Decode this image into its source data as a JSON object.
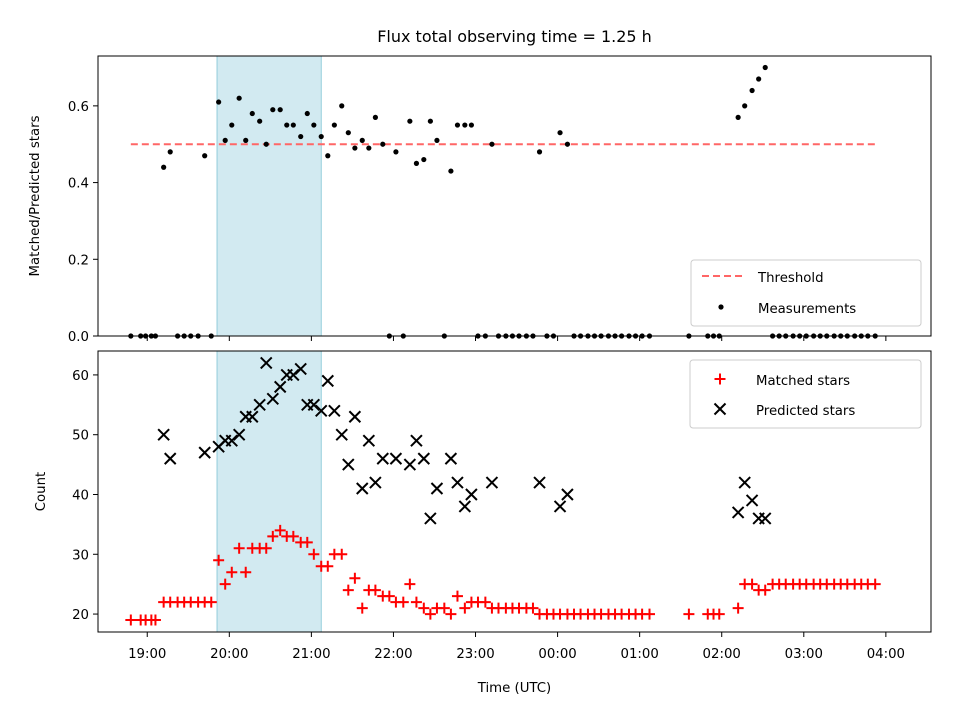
{
  "chart_data": [
    {
      "type": "scatter",
      "title": "Flux total observing time = 1.25 h",
      "xlabel": "",
      "ylabel": "Matched/Predicted stars",
      "ylim": [
        0,
        0.73
      ],
      "yticks": [
        0.0,
        0.2,
        0.4,
        0.6
      ],
      "ytick_labels": [
        "0.0",
        "0.2",
        "0.4",
        "0.6"
      ],
      "xlim_hours": [
        18.4,
        28.55
      ],
      "xticks_hours": [
        19,
        20,
        21,
        22,
        23,
        24,
        25,
        26,
        27,
        28
      ],
      "shaded_interval_hours": [
        19.85,
        21.12
      ],
      "shaded_color": "#add8e6",
      "threshold": {
        "name": "Threshold",
        "value": 0.5,
        "x_range_hours": [
          18.8,
          27.9
        ],
        "color": "#ff6666"
      },
      "legend": [
        "Threshold",
        "Measurements"
      ],
      "legend_position": "lower right",
      "series": [
        {
          "name": "Measurements",
          "color": "#000000",
          "points": [
            [
              18.8,
              0
            ],
            [
              18.92,
              0
            ],
            [
              18.98,
              0
            ],
            [
              19.05,
              0
            ],
            [
              19.1,
              0
            ],
            [
              19.2,
              0.44
            ],
            [
              19.28,
              0.48
            ],
            [
              19.37,
              0
            ],
            [
              19.45,
              0
            ],
            [
              19.53,
              0
            ],
            [
              19.62,
              0
            ],
            [
              19.7,
              0.47
            ],
            [
              19.78,
              0
            ],
            [
              19.87,
              0.61
            ],
            [
              19.95,
              0.51
            ],
            [
              20.03,
              0.55
            ],
            [
              20.12,
              0.62
            ],
            [
              20.2,
              0.51
            ],
            [
              20.28,
              0.58
            ],
            [
              20.37,
              0.56
            ],
            [
              20.45,
              0.5
            ],
            [
              20.53,
              0.59
            ],
            [
              20.62,
              0.59
            ],
            [
              20.7,
              0.55
            ],
            [
              20.78,
              0.55
            ],
            [
              20.87,
              0.52
            ],
            [
              20.95,
              0.58
            ],
            [
              21.03,
              0.55
            ],
            [
              21.12,
              0.52
            ],
            [
              21.2,
              0.47
            ],
            [
              21.28,
              0.55
            ],
            [
              21.37,
              0.6
            ],
            [
              21.45,
              0.53
            ],
            [
              21.53,
              0.49
            ],
            [
              21.62,
              0.51
            ],
            [
              21.7,
              0.49
            ],
            [
              21.78,
              0.57
            ],
            [
              21.87,
              0.5
            ],
            [
              21.95,
              0
            ],
            [
              22.03,
              0.48
            ],
            [
              22.12,
              0
            ],
            [
              22.2,
              0.56
            ],
            [
              22.28,
              0.45
            ],
            [
              22.37,
              0.46
            ],
            [
              22.45,
              0.56
            ],
            [
              22.53,
              0.51
            ],
            [
              22.62,
              0
            ],
            [
              22.7,
              0.43
            ],
            [
              22.78,
              0.55
            ],
            [
              22.87,
              0.55
            ],
            [
              22.95,
              0.55
            ],
            [
              23.03,
              0
            ],
            [
              23.12,
              0
            ],
            [
              23.2,
              0.5
            ],
            [
              23.28,
              0
            ],
            [
              23.37,
              0
            ],
            [
              23.45,
              0
            ],
            [
              23.53,
              0
            ],
            [
              23.62,
              0
            ],
            [
              23.7,
              0
            ],
            [
              23.78,
              0.48
            ],
            [
              23.87,
              0
            ],
            [
              23.95,
              0
            ],
            [
              24.03,
              0.53
            ],
            [
              24.12,
              0.5
            ],
            [
              24.2,
              0
            ],
            [
              24.28,
              0
            ],
            [
              24.37,
              0
            ],
            [
              24.45,
              0
            ],
            [
              24.53,
              0
            ],
            [
              24.62,
              0
            ],
            [
              24.7,
              0
            ],
            [
              24.78,
              0
            ],
            [
              24.87,
              0
            ],
            [
              24.95,
              0
            ],
            [
              25.03,
              0
            ],
            [
              25.12,
              0
            ],
            [
              25.6,
              0
            ],
            [
              25.83,
              0
            ],
            [
              25.9,
              0
            ],
            [
              25.97,
              0
            ],
            [
              26.2,
              0.57
            ],
            [
              26.28,
              0.6
            ],
            [
              26.37,
              0.64
            ],
            [
              26.45,
              0.67
            ],
            [
              26.53,
              0.7
            ],
            [
              26.62,
              0
            ],
            [
              26.7,
              0
            ],
            [
              26.78,
              0
            ],
            [
              26.87,
              0
            ],
            [
              26.95,
              0
            ],
            [
              27.03,
              0
            ],
            [
              27.12,
              0
            ],
            [
              27.2,
              0
            ],
            [
              27.28,
              0
            ],
            [
              27.37,
              0
            ],
            [
              27.45,
              0
            ],
            [
              27.53,
              0
            ],
            [
              27.62,
              0
            ],
            [
              27.7,
              0
            ],
            [
              27.78,
              0
            ],
            [
              27.87,
              0
            ]
          ]
        }
      ]
    },
    {
      "type": "scatter",
      "title": "",
      "xlabel": "Time (UTC)",
      "ylabel": "Count",
      "ylim": [
        17,
        64
      ],
      "yticks": [
        20,
        30,
        40,
        50,
        60
      ],
      "ytick_labels": [
        "20",
        "30",
        "40",
        "50",
        "60"
      ],
      "xlim_hours": [
        18.4,
        28.55
      ],
      "xticks_hours": [
        19,
        20,
        21,
        22,
        23,
        24,
        25,
        26,
        27,
        28
      ],
      "xtick_labels": [
        "19:00",
        "20:00",
        "21:00",
        "22:00",
        "23:00",
        "00:00",
        "01:00",
        "02:00",
        "03:00",
        "04:00"
      ],
      "shaded_interval_hours": [
        19.85,
        21.12
      ],
      "shaded_color": "#add8e6",
      "legend": [
        "Matched stars",
        "Predicted stars"
      ],
      "legend_position": "upper right",
      "series": [
        {
          "name": "Matched stars",
          "marker": "+",
          "color": "#ff0000",
          "points": [
            [
              18.8,
              19
            ],
            [
              18.92,
              19
            ],
            [
              18.98,
              19
            ],
            [
              19.05,
              19
            ],
            [
              19.1,
              19
            ],
            [
              19.2,
              22
            ],
            [
              19.28,
              22
            ],
            [
              19.37,
              22
            ],
            [
              19.45,
              22
            ],
            [
              19.53,
              22
            ],
            [
              19.62,
              22
            ],
            [
              19.7,
              22
            ],
            [
              19.78,
              22
            ],
            [
              19.87,
              29
            ],
            [
              19.95,
              25
            ],
            [
              20.03,
              27
            ],
            [
              20.12,
              31
            ],
            [
              20.2,
              27
            ],
            [
              20.28,
              31
            ],
            [
              20.37,
              31
            ],
            [
              20.45,
              31
            ],
            [
              20.53,
              33
            ],
            [
              20.62,
              34
            ],
            [
              20.7,
              33
            ],
            [
              20.78,
              33
            ],
            [
              20.87,
              32
            ],
            [
              20.95,
              32
            ],
            [
              21.03,
              30
            ],
            [
              21.12,
              28
            ],
            [
              21.2,
              28
            ],
            [
              21.28,
              30
            ],
            [
              21.37,
              30
            ],
            [
              21.45,
              24
            ],
            [
              21.53,
              26
            ],
            [
              21.62,
              21
            ],
            [
              21.7,
              24
            ],
            [
              21.78,
              24
            ],
            [
              21.87,
              23
            ],
            [
              21.95,
              23
            ],
            [
              22.03,
              22
            ],
            [
              22.12,
              22
            ],
            [
              22.2,
              25
            ],
            [
              22.28,
              22
            ],
            [
              22.37,
              21
            ],
            [
              22.45,
              20
            ],
            [
              22.53,
              21
            ],
            [
              22.62,
              21
            ],
            [
              22.7,
              20
            ],
            [
              22.78,
              23
            ],
            [
              22.87,
              21
            ],
            [
              22.95,
              22
            ],
            [
              23.03,
              22
            ],
            [
              23.12,
              22
            ],
            [
              23.2,
              21
            ],
            [
              23.28,
              21
            ],
            [
              23.37,
              21
            ],
            [
              23.45,
              21
            ],
            [
              23.53,
              21
            ],
            [
              23.62,
              21
            ],
            [
              23.7,
              21
            ],
            [
              23.78,
              20
            ],
            [
              23.87,
              20
            ],
            [
              23.95,
              20
            ],
            [
              24.03,
              20
            ],
            [
              24.12,
              20
            ],
            [
              24.2,
              20
            ],
            [
              24.28,
              20
            ],
            [
              24.37,
              20
            ],
            [
              24.45,
              20
            ],
            [
              24.53,
              20
            ],
            [
              24.62,
              20
            ],
            [
              24.7,
              20
            ],
            [
              24.78,
              20
            ],
            [
              24.87,
              20
            ],
            [
              24.95,
              20
            ],
            [
              25.03,
              20
            ],
            [
              25.12,
              20
            ],
            [
              25.6,
              20
            ],
            [
              25.83,
              20
            ],
            [
              25.9,
              20
            ],
            [
              25.97,
              20
            ],
            [
              26.2,
              21
            ],
            [
              26.28,
              25
            ],
            [
              26.37,
              25
            ],
            [
              26.45,
              24
            ],
            [
              26.53,
              24
            ],
            [
              26.62,
              25
            ],
            [
              26.7,
              25
            ],
            [
              26.78,
              25
            ],
            [
              26.87,
              25
            ],
            [
              26.95,
              25
            ],
            [
              27.03,
              25
            ],
            [
              27.12,
              25
            ],
            [
              27.2,
              25
            ],
            [
              27.28,
              25
            ],
            [
              27.37,
              25
            ],
            [
              27.45,
              25
            ],
            [
              27.53,
              25
            ],
            [
              27.62,
              25
            ],
            [
              27.7,
              25
            ],
            [
              27.78,
              25
            ],
            [
              27.87,
              25
            ]
          ]
        },
        {
          "name": "Predicted stars",
          "marker": "x",
          "color": "#000000",
          "points": [
            [
              19.2,
              50
            ],
            [
              19.28,
              46
            ],
            [
              19.7,
              47
            ],
            [
              19.87,
              48
            ],
            [
              19.95,
              49
            ],
            [
              20.03,
              49
            ],
            [
              20.12,
              50
            ],
            [
              20.2,
              53
            ],
            [
              20.28,
              53
            ],
            [
              20.37,
              55
            ],
            [
              20.45,
              62
            ],
            [
              20.53,
              56
            ],
            [
              20.62,
              58
            ],
            [
              20.7,
              60
            ],
            [
              20.78,
              60
            ],
            [
              20.87,
              61
            ],
            [
              20.95,
              55
            ],
            [
              21.03,
              55
            ],
            [
              21.12,
              54
            ],
            [
              21.2,
              59
            ],
            [
              21.28,
              54
            ],
            [
              21.37,
              50
            ],
            [
              21.45,
              45
            ],
            [
              21.53,
              53
            ],
            [
              21.62,
              41
            ],
            [
              21.7,
              49
            ],
            [
              21.78,
              42
            ],
            [
              21.87,
              46
            ],
            [
              22.03,
              46
            ],
            [
              22.2,
              45
            ],
            [
              22.28,
              49
            ],
            [
              22.37,
              46
            ],
            [
              22.45,
              36
            ],
            [
              22.53,
              41
            ],
            [
              22.7,
              46
            ],
            [
              22.78,
              42
            ],
            [
              22.87,
              38
            ],
            [
              22.95,
              40
            ],
            [
              23.2,
              42
            ],
            [
              23.78,
              42
            ],
            [
              24.03,
              38
            ],
            [
              24.12,
              40
            ],
            [
              26.2,
              37
            ],
            [
              26.28,
              42
            ],
            [
              26.37,
              39
            ],
            [
              26.45,
              36
            ],
            [
              26.53,
              36
            ]
          ]
        }
      ]
    }
  ]
}
